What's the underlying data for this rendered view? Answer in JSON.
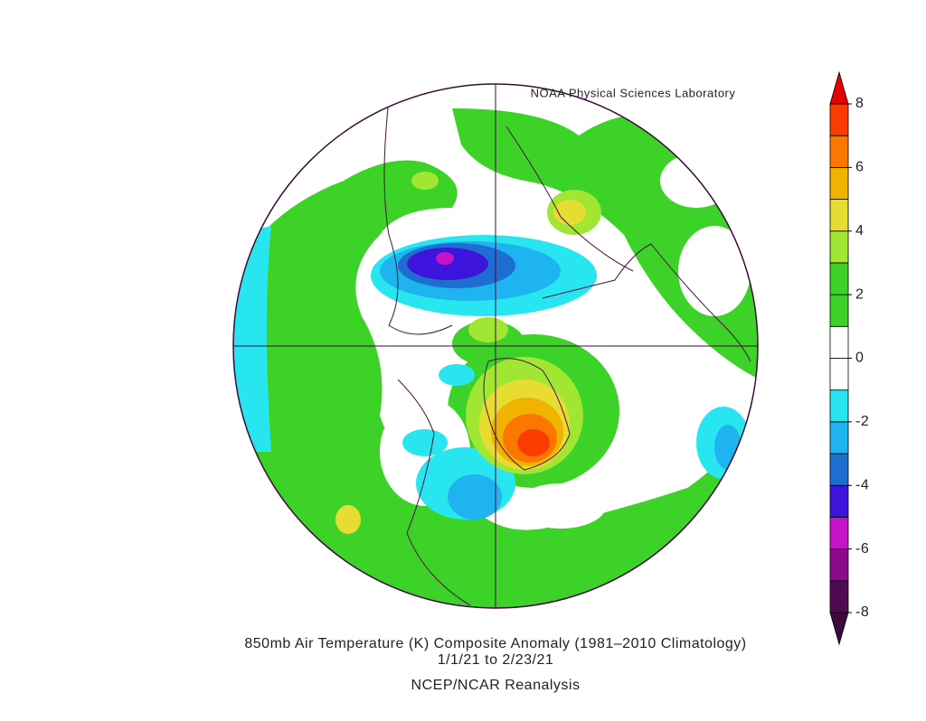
{
  "header": {
    "credit": "NOAA Physical Sciences Laboratory"
  },
  "footer": {
    "title": "850mb Air Temperature (K) Composite Anomaly (1981–2010 Climatology)",
    "dates": "1/1/21  to 2/23/21",
    "source": "NCEP/NCAR Reanalysis"
  },
  "colorbar": {
    "ylim": [
      -8,
      8
    ],
    "yticks": [
      8,
      6,
      4,
      2,
      0,
      -2,
      -4,
      -6,
      -8
    ],
    "bounds": [
      -8,
      -7,
      -6,
      -5,
      -4,
      -3,
      -2,
      -1,
      0,
      1,
      2,
      3,
      4,
      5,
      6,
      7,
      8
    ],
    "colors": [
      "#500a50",
      "#8c0a8c",
      "#c814c8",
      "#3c14dc",
      "#1e6ed2",
      "#1eb4f0",
      "#28e6f0",
      "#ffffff",
      "#ffffff",
      "#3cd228",
      "#3cd228",
      "#a0e632",
      "#e6dc32",
      "#f0b400",
      "#fa7800",
      "#fa3c00"
    ],
    "extend_colors": [
      "#3c0a3c",
      "#e60000"
    ]
  }
}
